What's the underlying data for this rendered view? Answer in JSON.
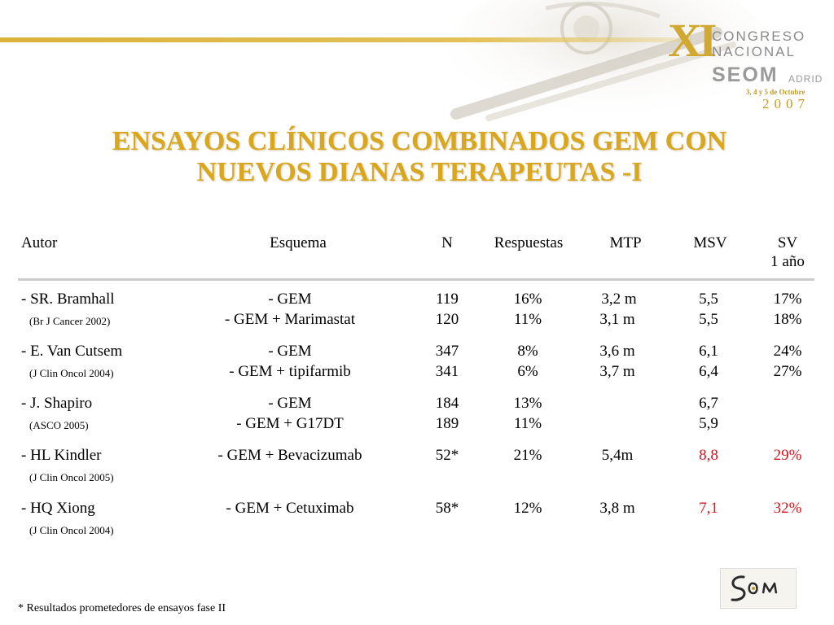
{
  "congress": {
    "roman": "XI",
    "line1": "CONGRESO",
    "line2": "NACIONAL",
    "org": "SEOM",
    "city": "ADRID",
    "dates": "3, 4 y 5 de Octubre",
    "year": "2007"
  },
  "title": {
    "line1": "ENSAYOS CLÍNICOS COMBINADOS GEM CON",
    "line2": "NUEVOS DIANAS TERAPEUTAS -I"
  },
  "table": {
    "headers": {
      "author": "Autor",
      "scheme": "Esquema",
      "n": "N",
      "responses": "Respuestas",
      "mtp": "MTP",
      "msv": "MSV",
      "sv": "SV",
      "sv_sub": "1 año"
    },
    "studies": [
      {
        "author": "- SR. Bramhall",
        "ref": "(Br J Cancer 2002)",
        "arms": [
          {
            "scheme": "- GEM",
            "n": "119",
            "resp": "16%",
            "mtp": "3,2  m",
            "msv": "5,5",
            "sv": "17%"
          },
          {
            "scheme": "- GEM + Marimastat",
            "n": "120",
            "resp": "11%",
            "mtp": "3,1 m",
            "msv": "5,5",
            "sv": "18%"
          }
        ]
      },
      {
        "author": "- E. Van Cutsem",
        "ref": "(J Clin Oncol 2004)",
        "arms": [
          {
            "scheme": "- GEM",
            "n": "347",
            "resp": "8%",
            "mtp": "3,6 m",
            "msv": "6,1",
            "sv": "24%"
          },
          {
            "scheme": "- GEM + tipifarmib",
            "n": "341",
            "resp": "6%",
            "mtp": "3,7 m",
            "msv": "6,4",
            "sv": "27%"
          }
        ]
      },
      {
        "author": "- J. Shapiro",
        "ref": "(ASCO 2005)",
        "arms": [
          {
            "scheme": "- GEM",
            "n": "184",
            "resp": "13%",
            "mtp": "",
            "msv": "6,7",
            "sv": ""
          },
          {
            "scheme": "- GEM + G17DT",
            "n": "189",
            "resp": "11%",
            "mtp": "",
            "msv": "5,9",
            "sv": ""
          }
        ]
      },
      {
        "author": "- HL Kindler",
        "ref": "(J Clin Oncol 2005)",
        "arms": [
          {
            "scheme": "- GEM + Bevacizumab",
            "n": "52*",
            "resp": "21%",
            "mtp": "5,4m",
            "msv": "8,8",
            "sv": "29%"
          }
        ]
      },
      {
        "author": "- HQ Xiong",
        "ref": "(J Clin Oncol 2004)",
        "arms": [
          {
            "scheme": "- GEM + Cetuximab",
            "n": "58*",
            "resp": "12%",
            "mtp": "3,8 m",
            "msv": "7,1",
            "sv": "32%"
          }
        ]
      }
    ]
  },
  "footnote": "* Resultados prometedores de ensayos fase II",
  "colors": {
    "title": "#d8a71d",
    "highlight": "#d4151c",
    "accent": "#d9b23a"
  }
}
